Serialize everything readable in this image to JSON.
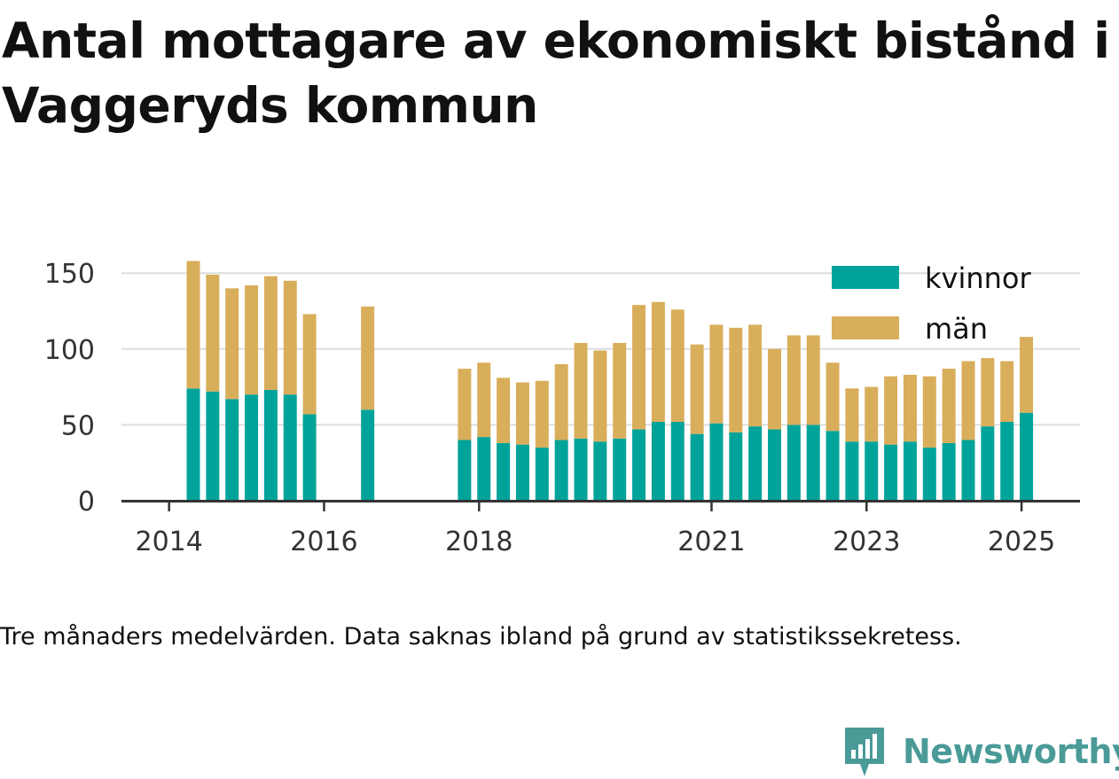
{
  "title": "Antal mottagare av ekonomiskt bistånd i Vaggeryds kommun",
  "note": "Tre månaders medelvärden. Data saknas ibland på grund av statistikssekretess.",
  "brand": {
    "name": "Newsworthy",
    "icon": "bar-chart-speech-bubble-icon"
  },
  "colors": {
    "kvinnor": "#00a39a",
    "man": "#d9ae5b",
    "grid": "#dddddd",
    "axis": "#333333",
    "brand": "#4a9a98"
  },
  "chart_data": {
    "type": "bar",
    "stacked": true,
    "x_unit": "quarter",
    "x": [
      "2014-Q2",
      "2014-Q3",
      "2014-Q4",
      "2015-Q1",
      "2015-Q2",
      "2015-Q3",
      "2015-Q4",
      "2016-Q1",
      "2016-Q2",
      "2016-Q3",
      "2016-Q4",
      "2017-Q1",
      "2017-Q2",
      "2017-Q3",
      "2017-Q4",
      "2018-Q1",
      "2018-Q2",
      "2018-Q3",
      "2018-Q4",
      "2019-Q1",
      "2019-Q2",
      "2019-Q3",
      "2019-Q4",
      "2020-Q1",
      "2020-Q2",
      "2020-Q3",
      "2020-Q4",
      "2021-Q1",
      "2021-Q2",
      "2021-Q3",
      "2021-Q4",
      "2022-Q1",
      "2022-Q2",
      "2022-Q3",
      "2022-Q4",
      "2023-Q1",
      "2023-Q2",
      "2023-Q3",
      "2023-Q4",
      "2024-Q1",
      "2024-Q2",
      "2024-Q3",
      "2024-Q4",
      "2025-Q1"
    ],
    "series": [
      {
        "name": "kvinnor",
        "values": [
          74,
          72,
          67,
          70,
          73,
          70,
          57,
          null,
          null,
          60,
          null,
          null,
          null,
          null,
          40,
          42,
          38,
          37,
          35,
          40,
          41,
          39,
          41,
          47,
          52,
          52,
          44,
          51,
          45,
          49,
          47,
          50,
          50,
          46,
          39,
          39,
          37,
          39,
          35,
          38,
          40,
          49,
          52,
          58
        ]
      },
      {
        "name": "män",
        "values": [
          84,
          77,
          73,
          72,
          75,
          75,
          66,
          null,
          null,
          68,
          null,
          null,
          null,
          null,
          47,
          49,
          43,
          41,
          44,
          50,
          63,
          60,
          63,
          82,
          79,
          74,
          59,
          65,
          69,
          67,
          53,
          59,
          59,
          45,
          35,
          36,
          45,
          44,
          47,
          49,
          52,
          45,
          40,
          50
        ]
      }
    ],
    "x_ticks": [
      "2014",
      "2016",
      "2018",
      "2021",
      "2023",
      "2025"
    ],
    "y_ticks": [
      0,
      50,
      100,
      150
    ],
    "ylim": [
      0,
      160
    ],
    "legend": {
      "position": "top-right",
      "entries": [
        "kvinnor",
        "män"
      ]
    },
    "grid": true
  }
}
